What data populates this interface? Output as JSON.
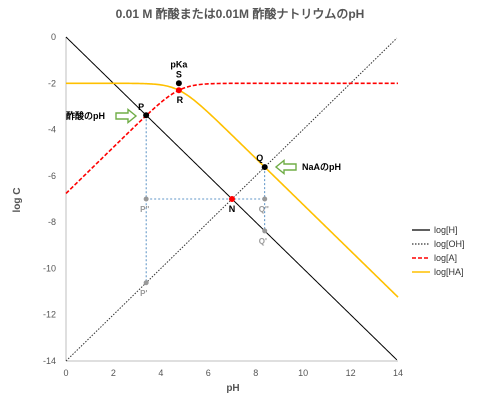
{
  "chart_data": {
    "type": "line",
    "title": "0.01 M 酢酸または0.01M 酢酸ナトリウムのpH",
    "xlabel": "pH",
    "ylabel": "log C",
    "xlim": [
      0,
      14
    ],
    "ylim": [
      -14,
      0
    ],
    "xticks": [
      "0",
      "2",
      "4",
      "6",
      "8",
      "10",
      "12",
      "14"
    ],
    "yticks": [
      "0",
      "-2",
      "-4",
      "-6",
      "-8",
      "-10",
      "-12",
      "-14"
    ],
    "grid": false,
    "legend_position": "right",
    "pKa": 4.76,
    "total_concentration_log": -2,
    "series": [
      {
        "name": "log[H]",
        "color": "#000000",
        "dash": "solid"
      },
      {
        "name": "log[OH]",
        "color": "#333333",
        "dash": "dotted"
      },
      {
        "name": "log[A]",
        "color": "#ff0000",
        "dash": "dashed"
      },
      {
        "name": "log[HA]",
        "color": "#ffc000",
        "dash": "solid"
      }
    ],
    "points": [
      {
        "label": "S",
        "x": 4.76,
        "y": -2.0,
        "color": "#000000"
      },
      {
        "label": "R",
        "x": 4.76,
        "y": -2.3,
        "color": "#ff0000"
      },
      {
        "label": "P",
        "x": 3.38,
        "y": -3.38,
        "color": "#000000"
      },
      {
        "label": "Q",
        "x": 8.38,
        "y": -5.62,
        "color": "#000000"
      },
      {
        "label": "N",
        "x": 7.0,
        "y": -7.0,
        "color": "#ff0000"
      },
      {
        "label": "P''",
        "x": 3.38,
        "y": -7.0,
        "color": "#999999"
      },
      {
        "label": "Q''",
        "x": 8.38,
        "y": -7.0,
        "color": "#999999"
      },
      {
        "label": "P'",
        "x": 3.38,
        "y": -10.62,
        "color": "#999999"
      },
      {
        "label": "Q'",
        "x": 8.38,
        "y": -8.38,
        "color": "#999999"
      }
    ],
    "annotations": {
      "pka_label": "pKa",
      "acetic_acid_ph": "酢酸のpH",
      "naa_ph": "NaAのpH"
    }
  },
  "colors": {
    "arrow_fill": "#ffffff",
    "arrow_stroke": "#70ad47",
    "guide_line": "#2e75b6"
  }
}
